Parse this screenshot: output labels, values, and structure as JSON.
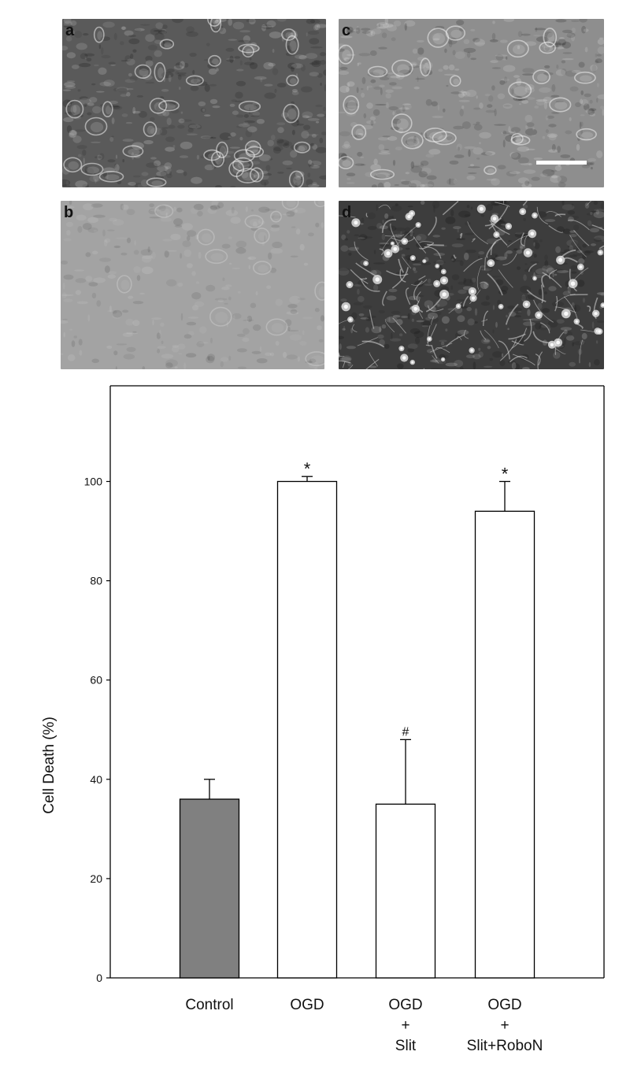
{
  "panels": [
    {
      "letter": "a",
      "tone": "#5a5a5a",
      "texture": "dense-cells"
    },
    {
      "letter": "b",
      "tone": "#a3a3a3",
      "texture": "faint-blur"
    },
    {
      "letter": "c",
      "tone": "#8e8e8e",
      "texture": "sparse-cells",
      "scale_bar": true
    },
    {
      "letter": "d",
      "tone": "#3d3d3d",
      "texture": "network"
    }
  ],
  "chart_data": {
    "type": "bar",
    "ylabel": "Cell Death (%)",
    "xlabel": "",
    "ylim": [
      0,
      120
    ],
    "yticks": [
      0,
      20,
      40,
      60,
      80,
      100
    ],
    "grid": false,
    "categories": [
      [
        "Control"
      ],
      [
        "OGD"
      ],
      [
        "OGD",
        "+",
        "Slit"
      ],
      [
        "OGD",
        "+",
        "Slit+RoboN"
      ]
    ],
    "values": [
      36,
      100,
      35,
      94
    ],
    "errors": [
      4,
      1,
      13,
      6
    ],
    "bar_colors": [
      "#808080",
      "#ffffff",
      "#ffffff",
      "#ffffff"
    ],
    "significance": [
      "",
      "*",
      "#",
      "*"
    ]
  }
}
